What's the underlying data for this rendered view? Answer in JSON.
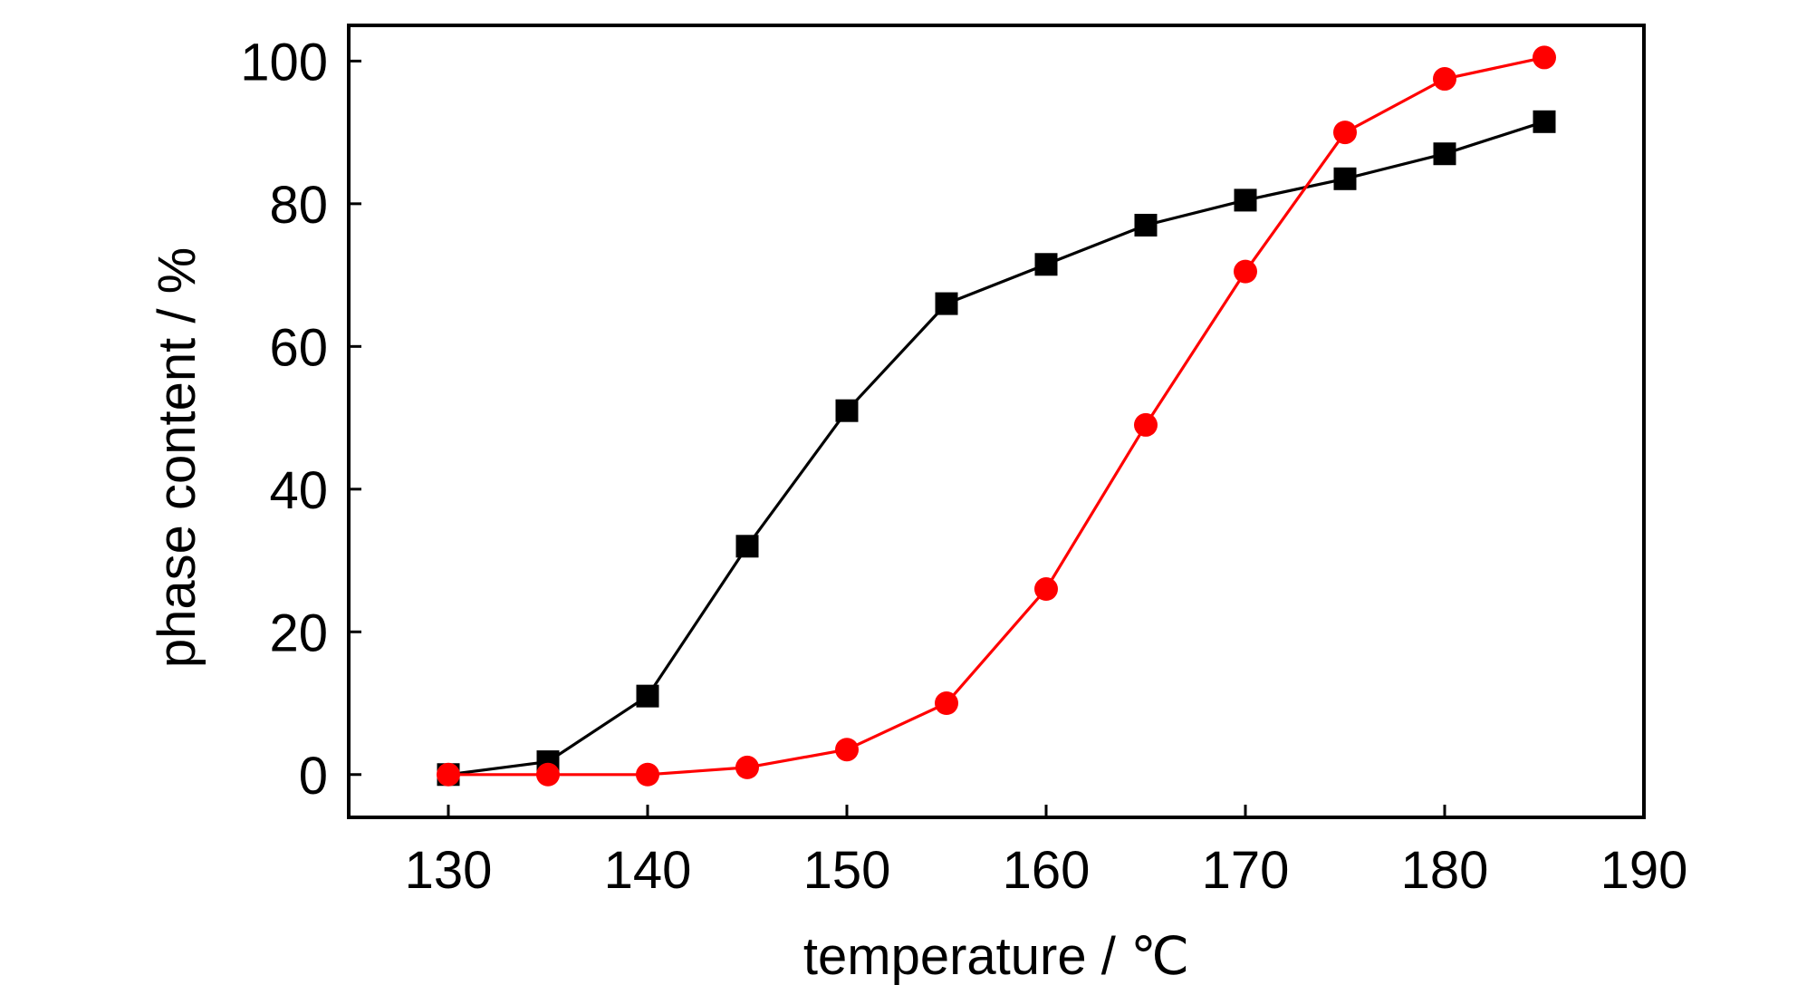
{
  "chart_data": {
    "type": "line",
    "xlabel": "temperature / ℃",
    "ylabel": "phase content / %",
    "xlim": [
      125,
      190
    ],
    "ylim": [
      -6,
      105
    ],
    "x_ticks": [
      130,
      140,
      150,
      160,
      170,
      180,
      190
    ],
    "y_ticks": [
      0,
      20,
      40,
      60,
      80,
      100
    ],
    "grid": false,
    "x": [
      130,
      135,
      140,
      145,
      150,
      155,
      160,
      165,
      170,
      175,
      180,
      185
    ],
    "series": [
      {
        "marker": "square",
        "color": "#000000",
        "values": [
          0,
          1.8,
          11,
          32,
          51,
          66,
          71.5,
          77,
          80.5,
          83.5,
          87,
          91.5
        ]
      },
      {
        "marker": "circle",
        "color": "#ff0000",
        "values": [
          0,
          0,
          0,
          1,
          3.5,
          10,
          26,
          49,
          70.5,
          90,
          97.5,
          100.5
        ]
      }
    ]
  }
}
